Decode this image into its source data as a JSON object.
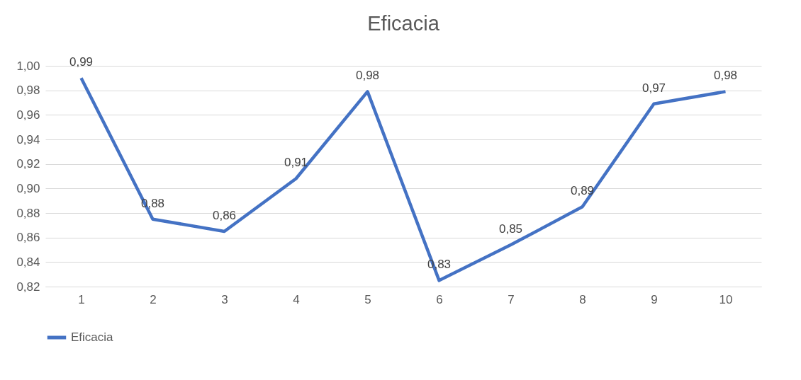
{
  "chart_data": {
    "type": "line",
    "title": "Eficacia",
    "categories": [
      "1",
      "2",
      "3",
      "4",
      "5",
      "6",
      "7",
      "8",
      "9",
      "10"
    ],
    "series": [
      {
        "name": "Eficacia",
        "color": "#4472c4",
        "values": [
          0.99,
          0.875,
          0.865,
          0.908,
          0.979,
          0.825,
          0.854,
          0.885,
          0.969,
          0.979
        ],
        "value_labels": [
          "0,99",
          "0,88",
          "0,86",
          "0,91",
          "0,98",
          "0,83",
          "0,85",
          "0,89",
          "0,97",
          "0,98"
        ]
      }
    ],
    "ylim": [
      0.82,
      1.0
    ],
    "yticks": [
      {
        "value": 0.82,
        "label": "0,82"
      },
      {
        "value": 0.84,
        "label": "0,84"
      },
      {
        "value": 0.86,
        "label": "0,86"
      },
      {
        "value": 0.88,
        "label": "0,88"
      },
      {
        "value": 0.9,
        "label": "0,90"
      },
      {
        "value": 0.92,
        "label": "0,92"
      },
      {
        "value": 0.94,
        "label": "0,94"
      },
      {
        "value": 0.96,
        "label": "0,96"
      },
      {
        "value": 0.98,
        "label": "0,98"
      },
      {
        "value": 1.0,
        "label": "1,00"
      }
    ],
    "grid": "y",
    "legend": "bottom",
    "marker": "none",
    "line_style": "solid"
  }
}
